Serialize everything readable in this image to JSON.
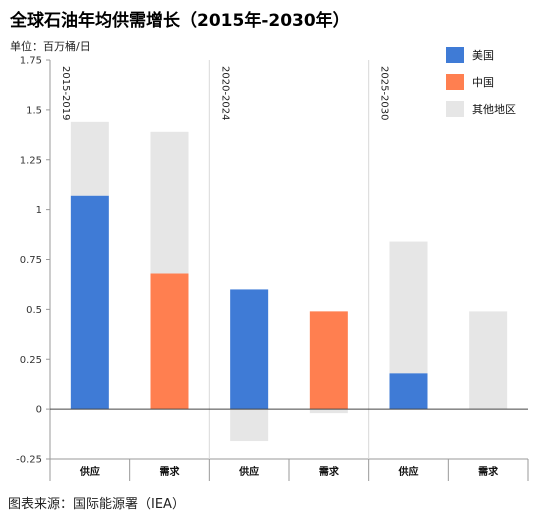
{
  "header": {
    "title": "全球石油年均供需增长（2015年-2030年）",
    "unit": "单位：百万桶/日"
  },
  "footer": {
    "source": "图表来源：国际能源署（IEA）"
  },
  "chart_data": {
    "type": "bar",
    "stacked": true,
    "title": "全球石油年均供需增长（2015年-2030年）",
    "ylabel": "单位：百万桶/日",
    "ylim": [
      -0.25,
      1.75
    ],
    "yticks": [
      -0.25,
      0,
      0.25,
      0.5,
      0.75,
      1,
      1.25,
      1.5,
      1.75
    ],
    "ytick_labels": [
      "-0.25",
      "0",
      "0.25",
      "0.5",
      "0.75",
      "1",
      "1.25",
      "1.5",
      "1.75"
    ],
    "periods": [
      "2015-2019",
      "2020-2024",
      "2025-2030"
    ],
    "categories": [
      "供应",
      "需求",
      "供应",
      "需求",
      "供应",
      "需求"
    ],
    "series": [
      {
        "name": "美国",
        "color": "#3f7bd6",
        "values": [
          1.07,
          0,
          0.6,
          0,
          0.18,
          0
        ]
      },
      {
        "name": "中国",
        "color": "#ff7f50",
        "values": [
          0,
          0.68,
          0,
          0.49,
          0,
          0
        ]
      },
      {
        "name": "其他地区",
        "color": "#e6e6e6",
        "values": [
          0.37,
          0.71,
          -0.16,
          -0.02,
          0.66,
          0.49
        ]
      }
    ],
    "legend": "top-right",
    "grid": false
  }
}
